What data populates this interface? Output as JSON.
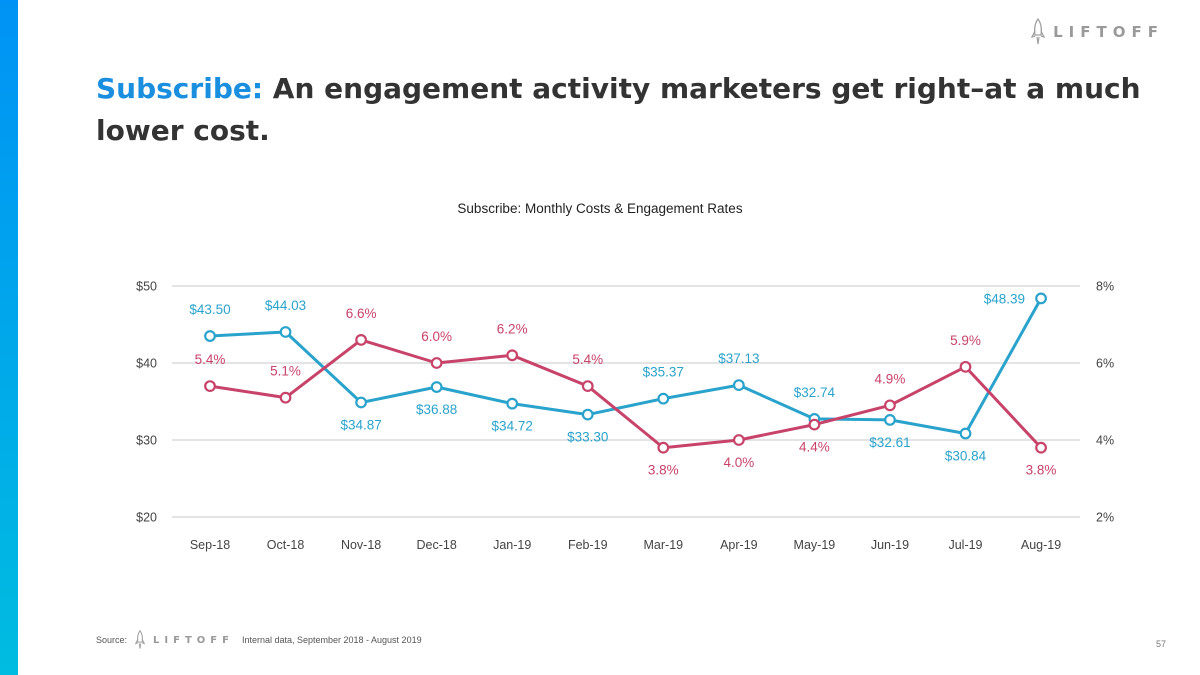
{
  "brand": {
    "logo_text": "LIFTOFF",
    "accent_color": "#1a8fe0"
  },
  "slide": {
    "title_accent": "Subscribe:",
    "title_rest": " An engagement activity marketers get right–at a much lower cost.",
    "page_number": "57"
  },
  "footer": {
    "source_label": "Source:",
    "logo_text": "LIFTOFF",
    "source_text": "Internal data, September 2018 - August 2019"
  },
  "chart_data": {
    "type": "line",
    "title": "Subscribe: Monthly Costs & Engagement Rates",
    "categories": [
      "Sep-18",
      "Oct-18",
      "Nov-18",
      "Dec-18",
      "Jan-19",
      "Feb-19",
      "Mar-19",
      "Apr-19",
      "May-19",
      "Jun-19",
      "Jul-19",
      "Aug-19"
    ],
    "y_left": {
      "ticks": [
        20,
        30,
        40,
        50
      ],
      "tick_labels": [
        "$20",
        "$30",
        "$40",
        "$50"
      ],
      "range": [
        20,
        50
      ]
    },
    "y_right": {
      "ticks": [
        2,
        4,
        6,
        8
      ],
      "tick_labels": [
        "2%",
        "4%",
        "6%",
        "8%"
      ],
      "range": [
        2,
        8
      ]
    },
    "grid": true,
    "legend": "none",
    "series": [
      {
        "name": "Cost",
        "axis": "left",
        "color": "#2aa3cc",
        "values": [
          43.5,
          44.03,
          34.87,
          36.88,
          34.72,
          33.3,
          35.37,
          37.13,
          32.74,
          32.61,
          30.84,
          48.39
        ],
        "labels": [
          "$43.50",
          "$44.03",
          "$34.87",
          "$36.88",
          "$34.72",
          "$33.30",
          "$35.37",
          "$37.13",
          "$32.74",
          "$32.61",
          "$30.84",
          "$48.39"
        ],
        "label_pos": [
          "above",
          "above",
          "below",
          "below",
          "below",
          "below",
          "above",
          "above",
          "above",
          "below",
          "below",
          "left"
        ]
      },
      {
        "name": "Engagement Rate",
        "axis": "right",
        "color": "#c8436a",
        "values": [
          5.4,
          5.1,
          6.6,
          6.0,
          6.2,
          5.4,
          3.8,
          4.0,
          4.4,
          4.9,
          5.9,
          3.8
        ],
        "labels": [
          "5.4%",
          "5.1%",
          "6.6%",
          "6.0%",
          "6.2%",
          "5.4%",
          "3.8%",
          "4.0%",
          "4.4%",
          "4.9%",
          "5.9%",
          "3.8%"
        ],
        "label_pos": [
          "above",
          "above",
          "above",
          "above",
          "above",
          "above",
          "below",
          "below",
          "below",
          "above",
          "above",
          "below"
        ]
      }
    ]
  }
}
